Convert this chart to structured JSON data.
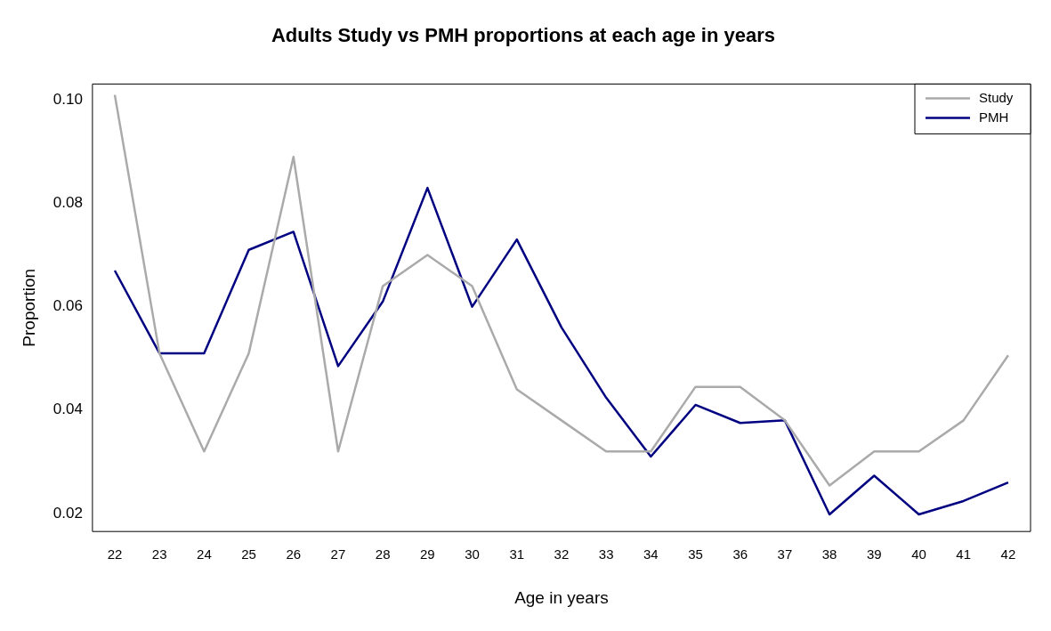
{
  "chart_data": {
    "type": "line",
    "title": "Adults Study vs PMH proportions at each age in years",
    "xlabel": "Age in years",
    "ylabel": "Proportion",
    "categories": [
      "22",
      "23",
      "24",
      "25",
      "26",
      "27",
      "28",
      "29",
      "30",
      "31",
      "32",
      "33",
      "34",
      "35",
      "36",
      "37",
      "38",
      "39",
      "40",
      "41",
      "42"
    ],
    "ylim": [
      0.0165,
      0.1031
    ],
    "yticks": [
      {
        "value": 0.02,
        "label": "0.02"
      },
      {
        "value": 0.04,
        "label": "0.04"
      },
      {
        "value": 0.06,
        "label": "0.06"
      },
      {
        "value": 0.08,
        "label": "0.08"
      },
      {
        "value": 0.1,
        "label": "0.10"
      }
    ],
    "series": [
      {
        "name": "Study",
        "color": "#aaaaaa",
        "values": [
          0.101,
          0.051,
          0.032,
          0.051,
          0.089,
          0.032,
          0.064,
          0.07,
          0.064,
          0.044,
          0.038,
          0.032,
          0.032,
          0.0445,
          0.0445,
          0.038,
          0.0254,
          0.032,
          0.032,
          0.038,
          0.0506
        ]
      },
      {
        "name": "PMH",
        "color": "#000080",
        "values": [
          0.067,
          0.051,
          0.051,
          0.071,
          0.0745,
          0.0485,
          0.061,
          0.083,
          0.06,
          0.073,
          0.056,
          0.0424,
          0.031,
          0.041,
          0.0375,
          0.038,
          0.0198,
          0.0273,
          0.0198,
          0.0224,
          0.026
        ]
      }
    ],
    "grid": false,
    "legend": "top right",
    "marker": "none",
    "line_style": "solid"
  }
}
